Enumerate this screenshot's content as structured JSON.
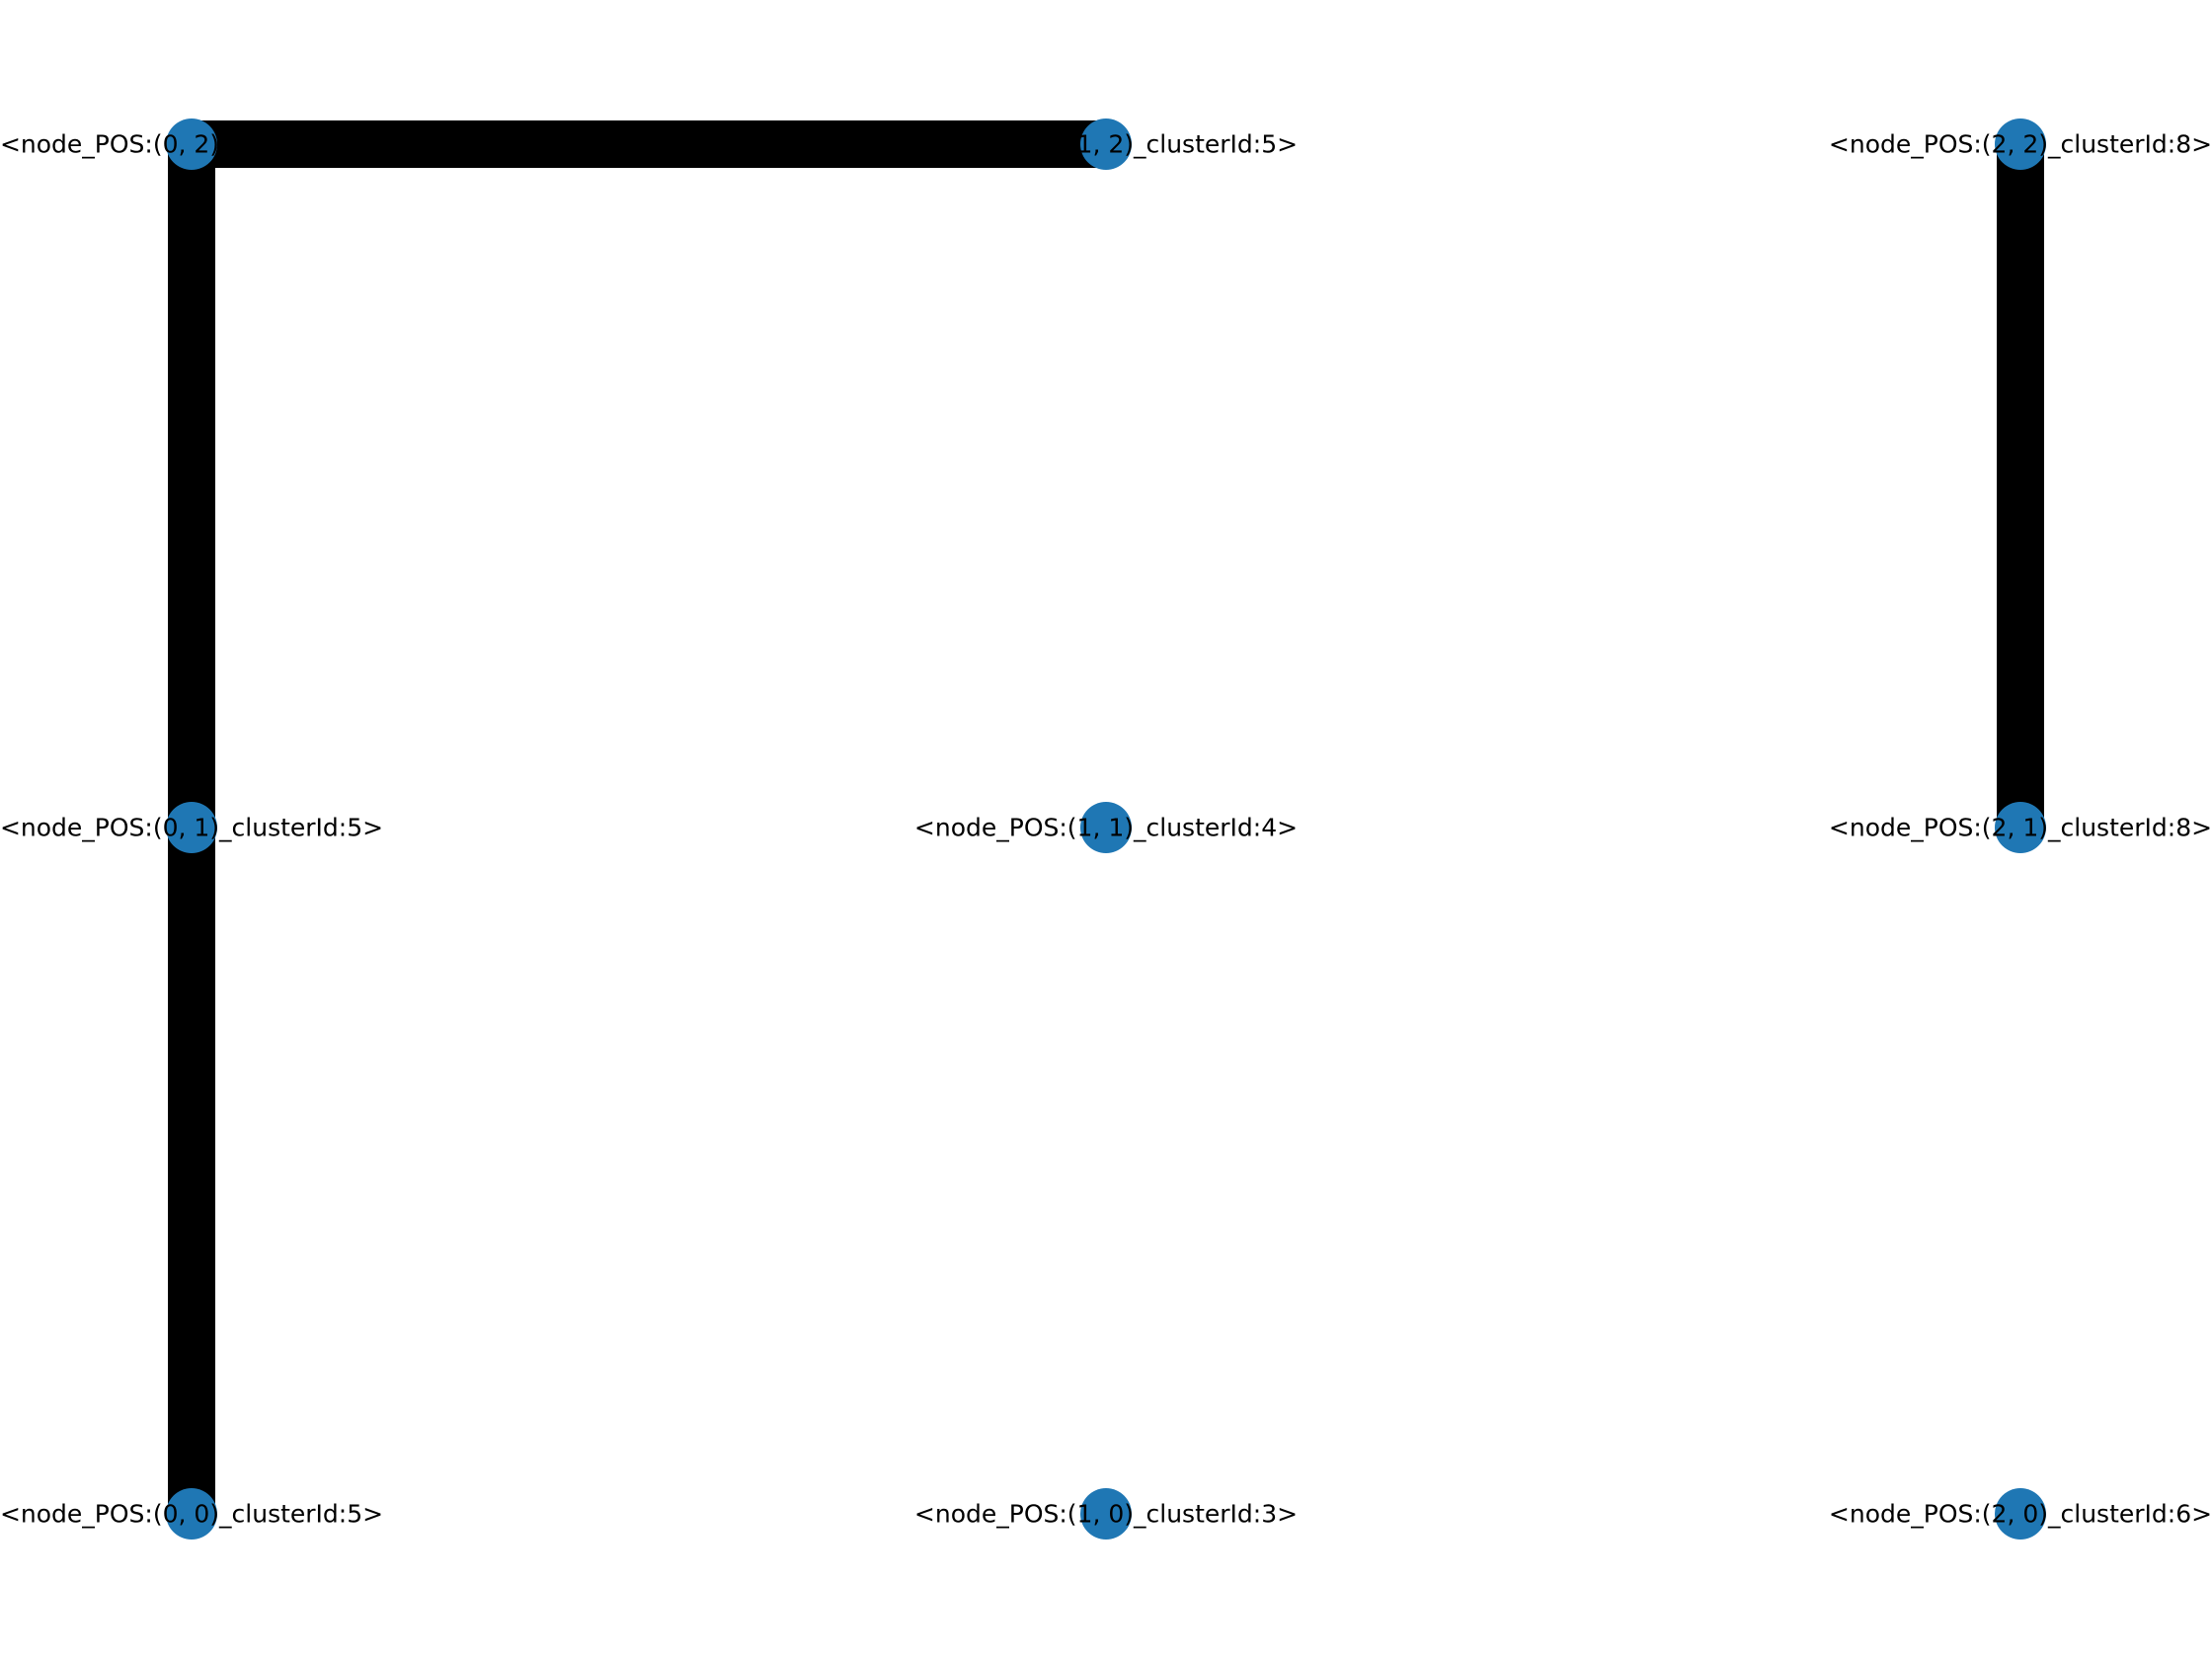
{
  "graph": {
    "node_color": "#1f77b4",
    "edge_color": "#000000",
    "label_color": "#000000",
    "nodes": [
      {
        "id": "n00",
        "col": 0,
        "row": 0,
        "label": "<node_POS:(0, 0)_clusterId:5>"
      },
      {
        "id": "n01",
        "col": 0,
        "row": 1,
        "label": "<node_POS:(0, 1)_clusterId:5>"
      },
      {
        "id": "n02",
        "col": 0,
        "row": 2,
        "label": "<node_POS:(0, 2)_clusterId:5>"
      },
      {
        "id": "n10",
        "col": 1,
        "row": 0,
        "label": "<node_POS:(1, 0)_clusterId:3>"
      },
      {
        "id": "n11",
        "col": 1,
        "row": 1,
        "label": "<node_POS:(1, 1)_clusterId:4>"
      },
      {
        "id": "n12",
        "col": 1,
        "row": 2,
        "label": "<node_POS:(1, 2)_clusterId:5>"
      },
      {
        "id": "n20",
        "col": 2,
        "row": 0,
        "label": "<node_POS:(2, 0)_clusterId:6>"
      },
      {
        "id": "n21",
        "col": 2,
        "row": 1,
        "label": "<node_POS:(2, 1)_clusterId:8>"
      },
      {
        "id": "n22",
        "col": 2,
        "row": 2,
        "label": "<node_POS:(2, 2)_clusterId:8>"
      }
    ],
    "edges": [
      {
        "source": "n00",
        "target": "n01"
      },
      {
        "source": "n01",
        "target": "n02"
      },
      {
        "source": "n02",
        "target": "n12"
      },
      {
        "source": "n21",
        "target": "n22"
      }
    ]
  }
}
